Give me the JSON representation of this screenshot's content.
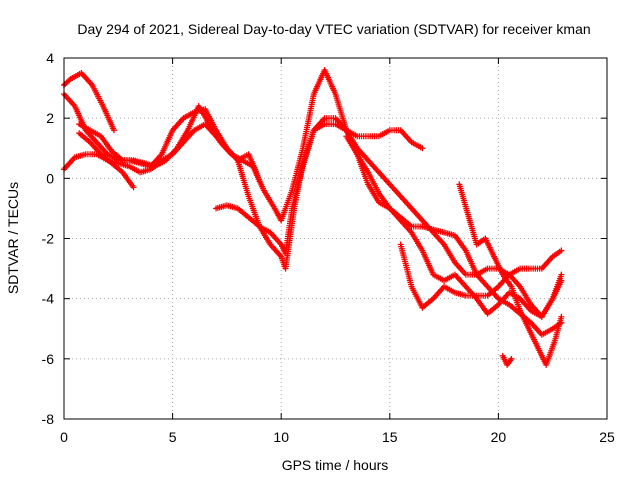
{
  "chart_data": {
    "type": "scatter",
    "title": "Day 294 of 2021, Sidereal Day-to-day VTEC variation (SDTVAR) for receiver kman",
    "xlabel": "GPS time / hours",
    "ylabel": "SDTVAR / TECUs",
    "xlim": [
      0,
      25
    ],
    "ylim": [
      -8,
      4
    ],
    "xticks": [
      0,
      5,
      10,
      15,
      20,
      25
    ],
    "yticks": [
      -8,
      -6,
      -4,
      -2,
      0,
      2,
      4
    ],
    "grid": true,
    "marker": "+",
    "color": "#ff0000",
    "series": [
      {
        "x": [
          0.0,
          0.5,
          1.0,
          1.5,
          2.0,
          2.5,
          3.0,
          3.5,
          4.0,
          4.5,
          5.0,
          5.5,
          6.0,
          6.5,
          7.0,
          7.5,
          8.0,
          8.5,
          9.0,
          9.5,
          10.0,
          10.2,
          10.6,
          11.0,
          11.5,
          12.0,
          12.5,
          13.0,
          13.5,
          14.0,
          14.5,
          15.0,
          15.5,
          16.0,
          16.5,
          17.0,
          17.5,
          18.0,
          18.5,
          19.0,
          19.5,
          20.0,
          20.5,
          21.0,
          21.5,
          22.0,
          22.5,
          22.9
        ],
        "y": [
          0.3,
          0.7,
          0.8,
          0.8,
          0.6,
          0.5,
          0.4,
          0.2,
          0.3,
          0.6,
          0.8,
          1.2,
          1.6,
          1.8,
          1.4,
          1.0,
          0.6,
          -0.6,
          -1.6,
          -2.2,
          -2.6,
          -3.0,
          -1.0,
          0.5,
          1.6,
          1.8,
          1.8,
          1.6,
          0.8,
          0.2,
          -0.5,
          -1.0,
          -1.3,
          -1.6,
          -1.6,
          -1.7,
          -1.8,
          -1.9,
          -2.4,
          -3.2,
          -3.6,
          -4.0,
          -4.2,
          -4.5,
          -4.8,
          -5.2,
          -5.0,
          -4.8
        ]
      },
      {
        "x": [
          0.0,
          0.3,
          0.8,
          1.3,
          1.8,
          2.3
        ],
        "y": [
          3.1,
          3.3,
          3.5,
          3.1,
          2.4,
          1.6
        ]
      },
      {
        "x": [
          0.0,
          0.5,
          1.0,
          1.5,
          2.0,
          2.5,
          3.0,
          3.5,
          4.0,
          4.5,
          5.0,
          5.5,
          6.0,
          6.5,
          7.0,
          7.5,
          8.0,
          8.5,
          8.8,
          9.0
        ],
        "y": [
          2.8,
          2.4,
          1.6,
          1.2,
          0.8,
          0.6,
          0.6,
          0.5,
          0.4,
          0.8,
          1.6,
          2.0,
          2.2,
          2.3,
          1.6,
          1.0,
          0.6,
          0.8,
          0.3,
          -0.1
        ]
      },
      {
        "x": [
          0.7,
          1.2,
          1.7,
          2.2,
          2.7,
          3.2,
          3.7,
          4.2,
          4.7,
          5.2,
          5.7,
          6.2,
          6.7,
          7.2,
          7.7,
          8.2,
          8.7,
          9.2,
          9.7,
          10.0,
          10.5,
          11.0,
          11.5,
          12.0,
          12.5,
          13.0,
          13.5,
          14.0,
          14.5,
          15.0,
          15.5,
          16.0,
          16.5
        ],
        "y": [
          1.8,
          1.6,
          1.4,
          0.9,
          0.6,
          0.6,
          0.5,
          0.4,
          0.6,
          1.0,
          1.6,
          2.4,
          1.8,
          1.2,
          0.8,
          0.6,
          0.4,
          -0.4,
          -1.0,
          -1.4,
          -0.4,
          1.0,
          2.8,
          3.6,
          2.8,
          1.6,
          1.4,
          1.4,
          1.4,
          1.6,
          1.6,
          1.2,
          1.0
        ]
      },
      {
        "x": [
          0.7,
          1.2,
          1.7,
          2.2,
          2.7,
          3.2
        ],
        "y": [
          1.5,
          1.2,
          0.8,
          0.5,
          0.2,
          -0.3
        ]
      },
      {
        "x": [
          7.0,
          7.5,
          8.0,
          8.5,
          9.0,
          9.5,
          10.0,
          10.2,
          10.5,
          11.0,
          11.5,
          12.0,
          12.5,
          13.0,
          13.5,
          14.0,
          14.5,
          15.0,
          15.5,
          16.0,
          16.5,
          17.0,
          17.5,
          18.0,
          18.5,
          19.0,
          19.5,
          20.0,
          20.5,
          21.0,
          21.5,
          22.0,
          22.5,
          22.9
        ],
        "y": [
          -1.0,
          -0.9,
          -1.0,
          -1.3,
          -1.6,
          -1.8,
          -2.2,
          -2.5,
          -1.0,
          0.4,
          1.6,
          2.0,
          2.0,
          1.6,
          1.0,
          0.6,
          0.2,
          -0.2,
          -0.6,
          -1.0,
          -1.4,
          -1.8,
          -2.2,
          -2.8,
          -3.2,
          -3.2,
          -3.0,
          -3.0,
          -3.2,
          -3.0,
          -3.0,
          -3.0,
          -2.6,
          -2.4
        ]
      },
      {
        "x": [
          15.5,
          16.0,
          16.5,
          17.0,
          17.5,
          18.0,
          18.5,
          19.0,
          19.5,
          20.0,
          20.5,
          21.0,
          21.5,
          22.0,
          22.5,
          22.9
        ],
        "y": [
          -2.2,
          -3.6,
          -4.3,
          -4.0,
          -3.6,
          -3.8,
          -3.9,
          -3.9,
          -3.9,
          -3.6,
          -3.2,
          -3.6,
          -4.2,
          -4.6,
          -4.0,
          -3.4
        ]
      },
      {
        "x": [
          18.2,
          18.6,
          19.0,
          19.4,
          19.8,
          20.2,
          20.6,
          21.0,
          21.4,
          21.8,
          22.2,
          22.6,
          22.9
        ],
        "y": [
          -0.2,
          -1.2,
          -2.2,
          -2.0,
          -2.6,
          -3.2,
          -3.6,
          -4.4,
          -5.0,
          -5.6,
          -6.2,
          -5.4,
          -4.6
        ]
      },
      {
        "x": [
          20.2,
          20.4,
          20.6
        ],
        "y": [
          -5.9,
          -6.2,
          -6.0
        ]
      },
      {
        "x": [
          13.0,
          13.5,
          14.0,
          14.5,
          15.0,
          15.5,
          16.0,
          16.5,
          17.0,
          17.5,
          18.0,
          18.5,
          19.0,
          19.5,
          20.0,
          20.5,
          21.0,
          21.5,
          22.0,
          22.5,
          22.9
        ],
        "y": [
          1.4,
          0.8,
          -0.2,
          -0.8,
          -1.0,
          -1.4,
          -1.8,
          -2.4,
          -3.2,
          -3.4,
          -3.2,
          -3.6,
          -4.0,
          -4.5,
          -4.2,
          -3.8,
          -4.0,
          -4.4,
          -4.6,
          -4.0,
          -3.2
        ]
      }
    ]
  }
}
